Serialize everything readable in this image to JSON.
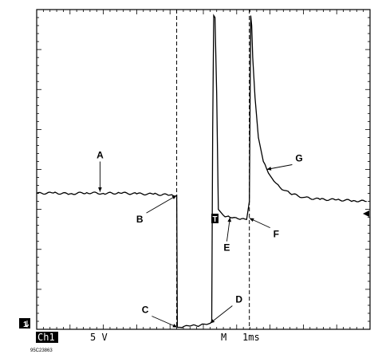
{
  "chart_data": {
    "type": "line",
    "title": "",
    "xlabel": "",
    "ylabel": "",
    "x_units": "divisions",
    "y_units": "divisions",
    "xlim": [
      0,
      10
    ],
    "ylim": [
      0,
      8
    ],
    "grid": false,
    "series": [
      {
        "x": [
          0.0,
          0.5,
          1.0,
          1.5,
          2.0,
          2.5,
          3.0,
          3.5,
          4.0,
          4.2,
          4.22,
          4.3,
          4.6,
          4.9,
          5.1,
          5.2,
          5.25,
          5.28,
          5.31,
          5.35,
          5.4,
          5.45,
          5.5,
          5.6,
          5.8,
          6.1,
          6.3,
          6.38,
          6.42,
          6.45,
          6.48,
          6.55,
          6.65,
          6.8,
          7.0,
          7.3,
          7.6,
          8.0,
          8.5,
          9.0,
          9.5,
          9.9
        ],
        "y": [
          3.4,
          3.41,
          3.39,
          3.42,
          3.4,
          3.41,
          3.39,
          3.38,
          3.36,
          3.35,
          0.05,
          0.05,
          0.08,
          0.1,
          0.12,
          0.15,
          0.18,
          5.0,
          7.85,
          7.8,
          5.9,
          3.0,
          2.95,
          2.85,
          2.8,
          2.75,
          2.75,
          3.2,
          7.85,
          7.6,
          6.8,
          5.8,
          4.8,
          4.2,
          3.85,
          3.55,
          3.4,
          3.3,
          3.25,
          3.24,
          3.22,
          3.2
        ]
      }
    ],
    "cursors_x": [
      4.2,
      6.38
    ],
    "annotations": [
      {
        "label": "A",
        "x": 1.9,
        "y": 3.44
      },
      {
        "label": "B",
        "x": 4.2,
        "y": 3.35
      },
      {
        "label": "C",
        "x": 4.22,
        "y": 0.05
      },
      {
        "label": "D",
        "x": 5.2,
        "y": 0.15
      },
      {
        "label": "E",
        "x": 5.8,
        "y": 2.8
      },
      {
        "label": "F",
        "x": 6.38,
        "y": 2.78
      },
      {
        "label": "G",
        "x": 6.9,
        "y": 4.0
      }
    ],
    "trigger_marker": "T",
    "ground_marker": "1",
    "channel": "Ch1",
    "volts_per_div": "5 V",
    "time_mode": "M",
    "time_per_div": "1ms"
  },
  "caption": "95C23863"
}
